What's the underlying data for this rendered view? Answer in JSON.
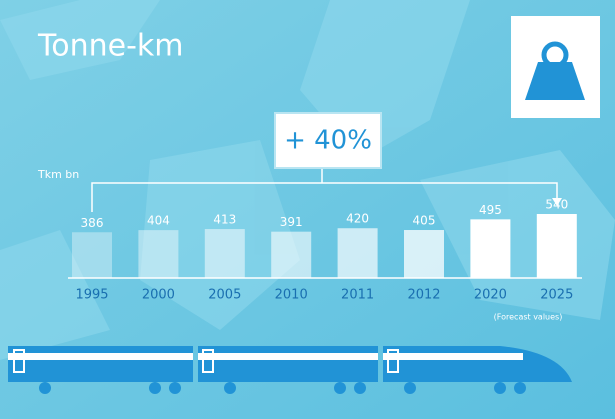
{
  "chart_data": {
    "type": "bar",
    "title": "Tonne-km",
    "y_label": "Tkm bn",
    "annotation": "+ 40%",
    "note": "(Forecast values)",
    "categories": [
      "1995",
      "2000",
      "2005",
      "2010",
      "2011",
      "2012",
      "2020",
      "2025"
    ],
    "values": [
      386,
      404,
      413,
      391,
      420,
      405,
      495,
      540
    ],
    "color": "#ffffff"
  }
}
